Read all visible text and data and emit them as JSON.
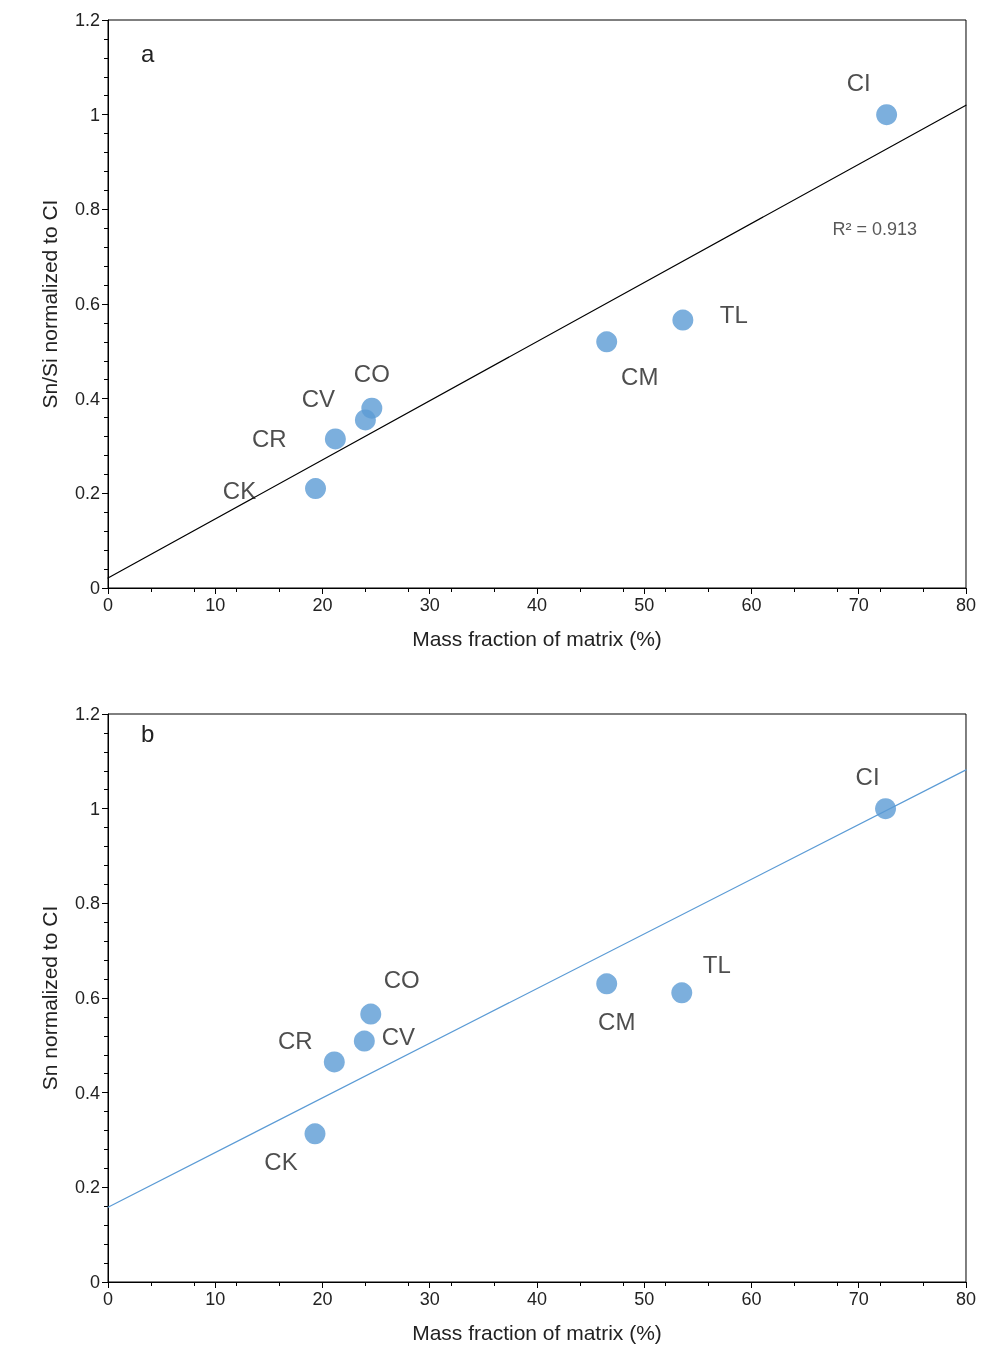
{
  "chart_data": [
    {
      "type": "scatter",
      "title": "a",
      "xlabel": "Mass fraction of matrix (%)",
      "ylabel": "Sn/Si normalized to CI",
      "xlim": [
        0,
        80
      ],
      "xticks": [
        0,
        10,
        20,
        30,
        40,
        50,
        60,
        70,
        80
      ],
      "ylim": [
        0,
        1.2
      ],
      "yticks": [
        0,
        0.2,
        0.4,
        0.6,
        0.8,
        1,
        1.2
      ],
      "grid": false,
      "series": [
        {
          "marker": "circle",
          "color": "#5b9bd5",
          "x": [
            19.35,
            21.2,
            24.0,
            24.6,
            46.5,
            53.6,
            72.6
          ],
          "values": [
            0.21,
            0.315,
            0.355,
            0.38,
            0.52,
            0.566,
            1.0
          ]
        },
        {
          "type": "line",
          "color": "#000000",
          "x": [
            0,
            80
          ],
          "values": [
            0.021,
            1.02
          ]
        }
      ],
      "annotations": [
        {
          "text": "CK",
          "x": 19.35,
          "y": 0.21
        },
        {
          "text": "CR",
          "x": 21.2,
          "y": 0.315
        },
        {
          "text": "CV",
          "x": 24.0,
          "y": 0.355
        },
        {
          "text": "CO",
          "x": 24.6,
          "y": 0.38
        },
        {
          "text": "CM",
          "x": 46.5,
          "y": 0.52
        },
        {
          "text": "TL",
          "x": 53.6,
          "y": 0.566
        },
        {
          "text": "CI",
          "x": 72.6,
          "y": 1.0
        },
        "R² = 0.913"
      ]
    },
    {
      "type": "scatter",
      "title": "b",
      "xlabel": "Mass fraction of matrix (%)",
      "ylabel": "Sn normalized to CI",
      "xlim": [
        0,
        80
      ],
      "xticks": [
        0,
        10,
        20,
        30,
        40,
        50,
        60,
        70,
        80
      ],
      "ylim": [
        0,
        1.2
      ],
      "yticks": [
        0,
        0.2,
        0.4,
        0.6,
        0.8,
        1,
        1.2
      ],
      "grid": false,
      "series": [
        {
          "marker": "circle",
          "color": "#5b9bd5",
          "x": [
            19.3,
            21.1,
            23.9,
            24.5,
            46.5,
            53.5,
            72.5
          ],
          "values": [
            0.313,
            0.465,
            0.509,
            0.566,
            0.63,
            0.611,
            1.0
          ]
        },
        {
          "type": "line",
          "color": "#5b9bd5",
          "x": [
            0,
            80
          ],
          "values": [
            0.158,
            1.082
          ]
        }
      ],
      "annotations": [
        {
          "text": "CK",
          "x": 19.3,
          "y": 0.313
        },
        {
          "text": "CR",
          "x": 21.1,
          "y": 0.465
        },
        {
          "text": "CV",
          "x": 23.9,
          "y": 0.509
        },
        {
          "text": "CO",
          "x": 24.5,
          "y": 0.566
        },
        {
          "text": "CM",
          "x": 46.5,
          "y": 0.63
        },
        {
          "text": "TL",
          "x": 53.5,
          "y": 0.611
        },
        {
          "text": "CI",
          "x": 72.5,
          "y": 1.0
        }
      ]
    }
  ]
}
